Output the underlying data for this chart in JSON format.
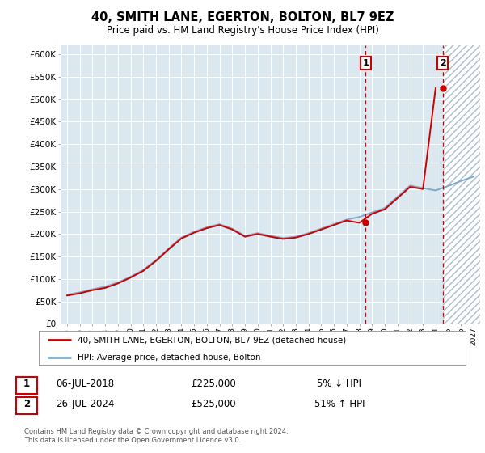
{
  "title": "40, SMITH LANE, EGERTON, BOLTON, BL7 9EZ",
  "subtitle": "Price paid vs. HM Land Registry's House Price Index (HPI)",
  "ylabel_ticks": [
    0,
    50000,
    100000,
    150000,
    200000,
    250000,
    300000,
    350000,
    400000,
    450000,
    500000,
    550000,
    600000
  ],
  "ylabel_labels": [
    "£0",
    "£50K",
    "£100K",
    "£150K",
    "£200K",
    "£250K",
    "£300K",
    "£350K",
    "£400K",
    "£450K",
    "£500K",
    "£550K",
    "£600K"
  ],
  "xlim_min": 1994.5,
  "xlim_max": 2027.5,
  "ylim_min": 0,
  "ylim_max": 620000,
  "sale1_year": 2018.5,
  "sale1_price": 225000,
  "sale2_year": 2024.55,
  "sale2_price": 525000,
  "legend_line1": "40, SMITH LANE, EGERTON, BOLTON, BL7 9EZ (detached house)",
  "legend_line2": "HPI: Average price, detached house, Bolton",
  "table_row1": [
    "1",
    "06-JUL-2018",
    "£225,000",
    "5% ↓ HPI"
  ],
  "table_row2": [
    "2",
    "26-JUL-2024",
    "£525,000",
    "51% ↑ HPI"
  ],
  "footer": "Contains HM Land Registry data © Crown copyright and database right 2024.\nThis data is licensed under the Open Government Licence v3.0.",
  "hpi_color": "#7aabcc",
  "price_color": "#cc0000",
  "bg_color": "#dce8f0",
  "vline_color": "#cc0000",
  "future_start": 2024.55,
  "hpi_years": [
    1995,
    1996,
    1997,
    1998,
    1999,
    2000,
    2001,
    2002,
    2003,
    2004,
    2005,
    2006,
    2007,
    2008,
    2009,
    2010,
    2011,
    2012,
    2013,
    2014,
    2015,
    2016,
    2017,
    2018,
    2019,
    2020,
    2021,
    2022,
    2023,
    2024,
    2025,
    2026,
    2027
  ],
  "hpi_values": [
    65000,
    70000,
    77000,
    83000,
    92000,
    105000,
    120000,
    142000,
    168000,
    192000,
    205000,
    215000,
    222000,
    212000,
    196000,
    202000,
    196000,
    191000,
    194000,
    202000,
    212000,
    222000,
    232000,
    238000,
    248000,
    258000,
    283000,
    308000,
    302000,
    297000,
    307000,
    318000,
    328000
  ],
  "prop_years": [
    1995,
    1996,
    1997,
    1998,
    1999,
    2000,
    2001,
    2002,
    2003,
    2004,
    2005,
    2006,
    2007,
    2008,
    2009,
    2010,
    2011,
    2012,
    2013,
    2014,
    2015,
    2016,
    2017,
    2018,
    2019,
    2020,
    2021,
    2022,
    2023,
    2024
  ],
  "prop_values": [
    63000,
    68000,
    75000,
    80000,
    90000,
    103000,
    118000,
    140000,
    166000,
    190000,
    203000,
    213000,
    220000,
    210000,
    194000,
    200000,
    194000,
    189000,
    192000,
    200000,
    210000,
    220000,
    230000,
    225000,
    245000,
    255000,
    280000,
    305000,
    300000,
    525000
  ]
}
